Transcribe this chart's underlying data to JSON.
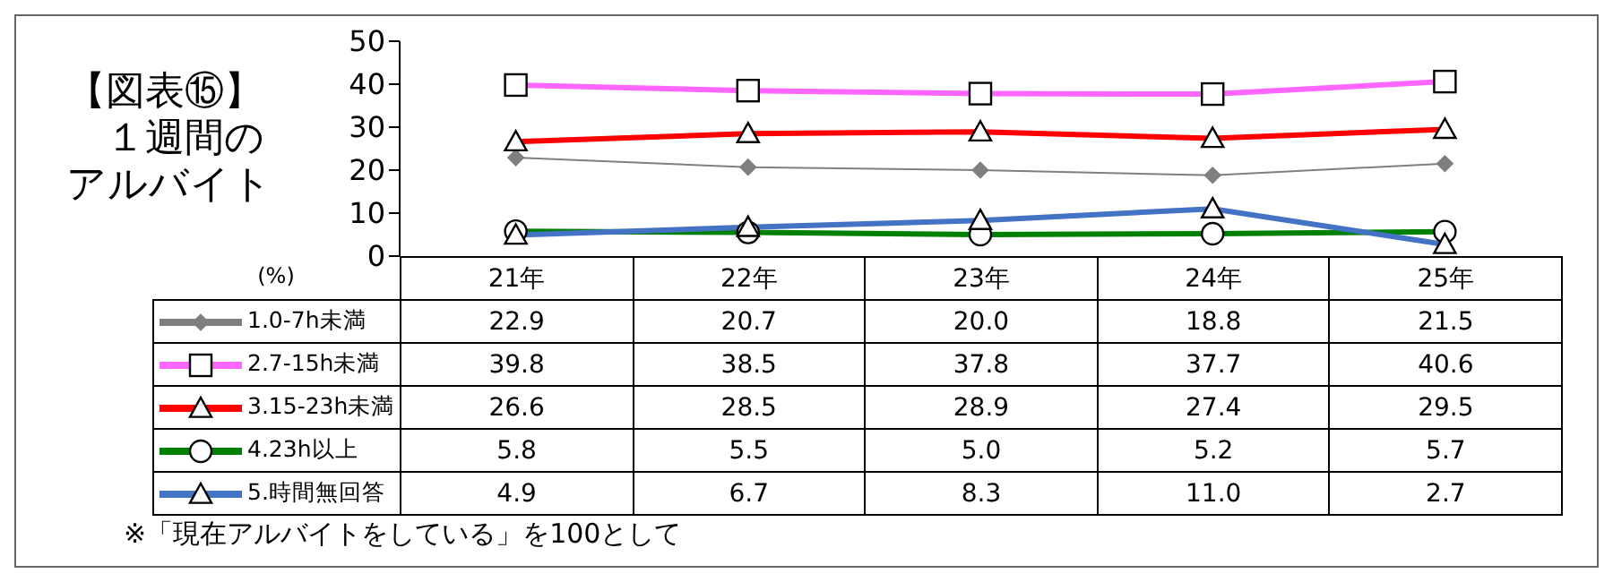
{
  "chart_data": {
    "type": "line",
    "title": "【図表⑮】",
    "subtitle": "１週間のアルバイト",
    "ylabel": "(%)",
    "categories": [
      "21年",
      "22年",
      "23年",
      "24年",
      "25年"
    ],
    "series": [
      {
        "name": "1.0-7h未満",
        "color": "#7f7f7f",
        "marker": "diamond",
        "values": [
          22.9,
          20.7,
          20.0,
          18.8,
          21.5
        ],
        "value_labels": [
          "22.9",
          "20.7",
          "20.0",
          "18.8",
          "21.5"
        ]
      },
      {
        "name": "2.7-15h未満",
        "color": "#ff66ff",
        "marker": "square",
        "values": [
          39.8,
          38.5,
          37.8,
          37.7,
          40.6
        ],
        "value_labels": [
          "39.8",
          "38.5",
          "37.8",
          "37.7",
          "40.6"
        ]
      },
      {
        "name": "3.15-23h未満",
        "color": "#ff0000",
        "marker": "triangle",
        "values": [
          26.6,
          28.5,
          28.9,
          27.4,
          29.5
        ],
        "value_labels": [
          "26.6",
          "28.5",
          "28.9",
          "27.4",
          "29.5"
        ]
      },
      {
        "name": "4.23h以上",
        "color": "#008000",
        "marker": "circle",
        "values": [
          5.8,
          5.5,
          5.0,
          5.2,
          5.7
        ],
        "value_labels": [
          "5.8",
          "5.5",
          "5.0",
          "5.2",
          "5.7"
        ]
      },
      {
        "name": "5.時間無回答",
        "color": "#4472c4",
        "marker": "triangle",
        "values": [
          4.9,
          6.7,
          8.3,
          11.0,
          2.7
        ],
        "value_labels": [
          "4.9",
          "6.7",
          "8.3",
          "11.0",
          "2.7"
        ]
      }
    ],
    "ylim": [
      0,
      50
    ],
    "yticks": [
      0,
      10,
      20,
      30,
      40,
      50
    ],
    "legend": "bottom left",
    "annotations": [
      "※「現在アルバイトをしている」を100として"
    ]
  }
}
